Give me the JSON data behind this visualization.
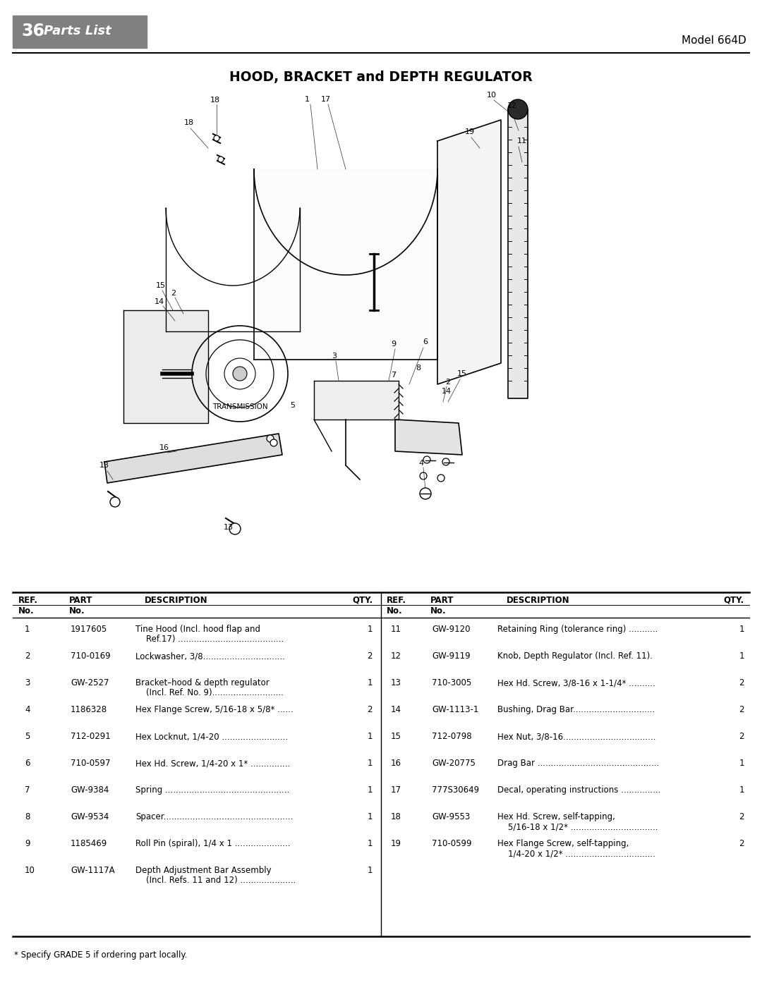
{
  "page_number": "36",
  "page_title": "Parts List",
  "model": "Model 664D",
  "diagram_title": "HOOD, BRACKET and DEPTH REGULATOR",
  "background_color": "#ffffff",
  "header_bg_color": "#808080",
  "header_text_color": "#ffffff",
  "table_left": [
    {
      "ref": "1",
      "part": "1917605",
      "desc1": "Tine Hood (Incl. hood flap and",
      "desc2": "    Ref.17) ........................................",
      "qty": "1"
    },
    {
      "ref": "2",
      "part": "710-0169",
      "desc1": "Lockwasher, 3/8...............................",
      "desc2": "",
      "qty": "2"
    },
    {
      "ref": "3",
      "part": "GW-2527",
      "desc1": "Bracket–hood & depth regulator",
      "desc2": "    (Incl. Ref. No. 9)...........................",
      "qty": "1"
    },
    {
      "ref": "4",
      "part": "1186328",
      "desc1": "Hex Flange Screw, 5/16-18 x 5/8* ......",
      "desc2": "",
      "qty": "2"
    },
    {
      "ref": "5",
      "part": "712-0291",
      "desc1": "Hex Locknut, 1/4-20 .........................",
      "desc2": "",
      "qty": "1"
    },
    {
      "ref": "6",
      "part": "710-0597",
      "desc1": "Hex Hd. Screw, 1/4-20 x 1* ...............",
      "desc2": "",
      "qty": "1"
    },
    {
      "ref": "7",
      "part": "GW-9384",
      "desc1": "Spring ...............................................",
      "desc2": "",
      "qty": "1"
    },
    {
      "ref": "8",
      "part": "GW-9534",
      "desc1": "Spacer.................................................",
      "desc2": "",
      "qty": "1"
    },
    {
      "ref": "9",
      "part": "1185469",
      "desc1": "Roll Pin (spiral), 1/4 x 1 .....................",
      "desc2": "",
      "qty": "1"
    },
    {
      "ref": "10",
      "part": "GW-1117A",
      "desc1": "Depth Adjustment Bar Assembly",
      "desc2": "    (Incl. Refs. 11 and 12) .....................",
      "qty": "1"
    }
  ],
  "table_right": [
    {
      "ref": "11",
      "part": "GW-9120",
      "desc1": "Retaining Ring (tolerance ring) ...........",
      "desc2": "",
      "qty": "1"
    },
    {
      "ref": "12",
      "part": "GW-9119",
      "desc1": "Knob, Depth Regulator (Incl. Ref. 11).",
      "desc2": "",
      "qty": "1"
    },
    {
      "ref": "13",
      "part": "710-3005",
      "desc1": "Hex Hd. Screw, 3/8-16 x 1-1/4* ..........",
      "desc2": "",
      "qty": "2"
    },
    {
      "ref": "14",
      "part": "GW-1113-1",
      "desc1": "Bushing, Drag Bar...............................",
      "desc2": "",
      "qty": "2"
    },
    {
      "ref": "15",
      "part": "712-0798",
      "desc1": "Hex Nut, 3/8-16...................................",
      "desc2": "",
      "qty": "2"
    },
    {
      "ref": "16",
      "part": "GW-20775",
      "desc1": "Drag Bar ..............................................",
      "desc2": "",
      "qty": "1"
    },
    {
      "ref": "17",
      "part": "777S30649",
      "desc1": "Decal, operating instructions ...............",
      "desc2": "",
      "qty": "1"
    },
    {
      "ref": "18",
      "part": "GW-9553",
      "desc1": "Hex Hd. Screw, self-tapping,",
      "desc2": "    5/16-18 x 1/2* .................................",
      "qty": "2"
    },
    {
      "ref": "19",
      "part": "710-0599",
      "desc1": "Hex Flange Screw, self-tapping,",
      "desc2": "    1/4-20 x 1/2* ..................................",
      "qty": "2"
    }
  ],
  "footnote": "* Specify GRADE 5 if ordering part locally.",
  "transmission_label": "TRANSMISSION"
}
